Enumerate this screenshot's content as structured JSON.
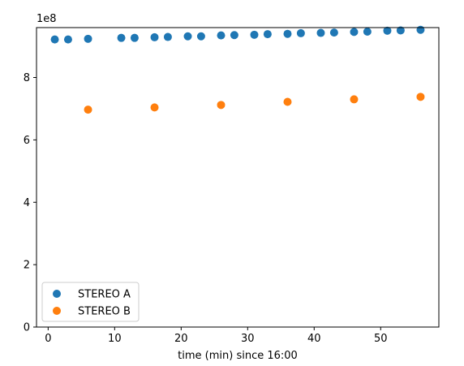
{
  "chart_data": {
    "type": "scatter",
    "xlabel": "time (min) since 16:00",
    "ylabel": "",
    "y_scale_label": "1e8",
    "xlim": [
      -1.75,
      58.75
    ],
    "ylim": [
      0,
      960000000
    ],
    "x_ticks": [
      0,
      10,
      20,
      30,
      40,
      50
    ],
    "x_tick_labels": [
      "0",
      "10",
      "20",
      "30",
      "40",
      "50"
    ],
    "y_ticks": [
      0,
      200000000,
      400000000,
      600000000,
      800000000
    ],
    "y_tick_labels": [
      "0",
      "2",
      "4",
      "6",
      "8"
    ],
    "grid": false,
    "legend_position": "lower-left",
    "series": [
      {
        "name": "STEREO A",
        "color": "#1f77b4",
        "x": [
          1,
          3,
          6,
          11,
          13,
          16,
          18,
          21,
          23,
          26,
          28,
          31,
          33,
          36,
          38,
          41,
          43,
          46,
          48,
          51,
          53,
          56
        ],
        "y": [
          922000000,
          922000000,
          924000000,
          927000000,
          927000000,
          929000000,
          930000000,
          932000000,
          932000000,
          935000000,
          936000000,
          937000000,
          939000000,
          940000000,
          942000000,
          943000000,
          944000000,
          946000000,
          947000000,
          950000000,
          951000000,
          953000000
        ]
      },
      {
        "name": "STEREO B",
        "color": "#ff7f0e",
        "x": [
          6,
          16,
          26,
          36,
          46,
          56
        ],
        "y": [
          697000000,
          704000000,
          712000000,
          722000000,
          730000000,
          738000000
        ]
      }
    ]
  }
}
